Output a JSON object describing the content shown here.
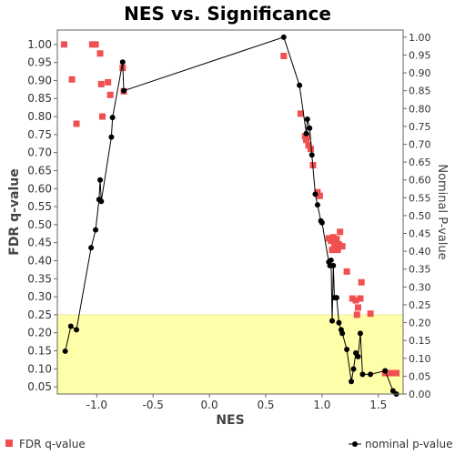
{
  "chart_data": {
    "type": "scatter",
    "title": "NES vs. Significance",
    "xlabel": "NES",
    "ylabel_left": "FDR q-value",
    "ylabel_right": "Nominal P-value",
    "xlim": [
      -1.35,
      1.72
    ],
    "ylim_left": [
      0.03,
      1.04
    ],
    "ylim_right": [
      0.0,
      1.02
    ],
    "x_ticks": [
      "-1.0",
      "-0.5",
      "0.0",
      "0.5",
      "1.0",
      "1.5"
    ],
    "y_left_ticks": [
      "0.05",
      "0.10",
      "0.15",
      "0.20",
      "0.25",
      "0.30",
      "0.35",
      "0.40",
      "0.45",
      "0.50",
      "0.55",
      "0.60",
      "0.65",
      "0.70",
      "0.75",
      "0.80",
      "0.85",
      "0.90",
      "0.95",
      "1.00"
    ],
    "y_right_ticks": [
      "0.00",
      "0.05",
      "0.10",
      "0.15",
      "0.20",
      "0.25",
      "0.30",
      "0.35",
      "0.40",
      "0.45",
      "0.50",
      "0.55",
      "0.60",
      "0.65",
      "0.70",
      "0.75",
      "0.80",
      "0.85",
      "0.90",
      "0.95",
      "1.00"
    ],
    "highlight_region": {
      "y_max_left": 0.25,
      "color": "#ffffaa"
    },
    "colors": {
      "fdr": "#f05050",
      "nominal": "#000000",
      "highlight": "#ffffaa"
    },
    "series": [
      {
        "name": "FDR q-value",
        "marker": "square",
        "points": [
          [
            -1.29,
            1.0
          ],
          [
            -1.22,
            0.903
          ],
          [
            -1.18,
            0.78
          ],
          [
            -1.04,
            1.0
          ],
          [
            -1.01,
            1.0
          ],
          [
            -0.97,
            0.975
          ],
          [
            -0.96,
            0.89
          ],
          [
            -0.95,
            0.8
          ],
          [
            -0.9,
            0.895
          ],
          [
            -0.88,
            0.86
          ],
          [
            -0.77,
            0.935
          ],
          [
            -0.76,
            0.87
          ],
          [
            0.66,
            0.968
          ],
          [
            0.81,
            0.808
          ],
          [
            0.85,
            0.745
          ],
          [
            0.86,
            0.735
          ],
          [
            0.87,
            0.745
          ],
          [
            0.88,
            0.72
          ],
          [
            0.9,
            0.71
          ],
          [
            0.92,
            0.665
          ],
          [
            0.96,
            0.59
          ],
          [
            0.98,
            0.58
          ],
          [
            1.06,
            0.462
          ],
          [
            1.08,
            0.455
          ],
          [
            1.09,
            0.43
          ],
          [
            1.1,
            0.465
          ],
          [
            1.11,
            0.44
          ],
          [
            1.12,
            0.453
          ],
          [
            1.13,
            0.46
          ],
          [
            1.14,
            0.43
          ],
          [
            1.15,
            0.445
          ],
          [
            1.16,
            0.48
          ],
          [
            1.17,
            0.44
          ],
          [
            1.18,
            0.44
          ],
          [
            1.22,
            0.37
          ],
          [
            1.27,
            0.295
          ],
          [
            1.3,
            0.29
          ],
          [
            1.31,
            0.25
          ],
          [
            1.32,
            0.27
          ],
          [
            1.34,
            0.295
          ],
          [
            1.35,
            0.34
          ],
          [
            1.43,
            0.253
          ],
          [
            1.56,
            0.088
          ],
          [
            1.6,
            0.088
          ],
          [
            1.65,
            0.088
          ],
          [
            1.66,
            0.088
          ]
        ]
      },
      {
        "name": "nominal p-value",
        "marker": "circle",
        "points": [
          [
            -1.28,
            0.12
          ],
          [
            -1.23,
            0.19
          ],
          [
            -1.18,
            0.18
          ],
          [
            -1.05,
            0.41
          ],
          [
            -1.01,
            0.46
          ],
          [
            -0.98,
            0.545
          ],
          [
            -0.97,
            0.6
          ],
          [
            -0.96,
            0.54
          ],
          [
            -0.87,
            0.72
          ],
          [
            -0.86,
            0.775
          ],
          [
            -0.77,
            0.93
          ],
          [
            -0.76,
            0.85
          ],
          [
            0.66,
            1.0
          ],
          [
            0.8,
            0.865
          ],
          [
            0.86,
            0.73
          ],
          [
            0.87,
            0.77
          ],
          [
            0.89,
            0.745
          ],
          [
            0.91,
            0.67
          ],
          [
            0.94,
            0.56
          ],
          [
            0.96,
            0.53
          ],
          [
            0.99,
            0.485
          ],
          [
            1.0,
            0.48
          ],
          [
            1.06,
            0.37
          ],
          [
            1.07,
            0.36
          ],
          [
            1.08,
            0.375
          ],
          [
            1.09,
            0.205
          ],
          [
            1.1,
            0.36
          ],
          [
            1.11,
            0.27
          ],
          [
            1.13,
            0.27
          ],
          [
            1.15,
            0.2
          ],
          [
            1.17,
            0.18
          ],
          [
            1.18,
            0.17
          ],
          [
            1.22,
            0.125
          ],
          [
            1.26,
            0.035
          ],
          [
            1.28,
            0.07
          ],
          [
            1.3,
            0.115
          ],
          [
            1.32,
            0.105
          ],
          [
            1.34,
            0.17
          ],
          [
            1.36,
            0.055
          ],
          [
            1.43,
            0.055
          ],
          [
            1.56,
            0.065
          ],
          [
            1.63,
            0.009
          ],
          [
            1.66,
            0.0
          ]
        ]
      }
    ],
    "legend": {
      "position": "bottom",
      "items": [
        "FDR q-value",
        "nominal p-value"
      ]
    }
  }
}
